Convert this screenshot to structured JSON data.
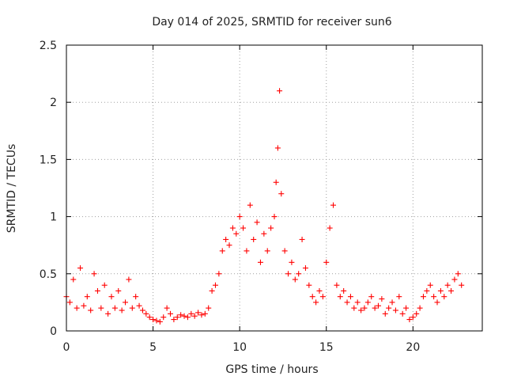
{
  "chart_data": {
    "type": "scatter",
    "title": "Day 014 of 2025, SRMTID for receiver sun6",
    "xlabel": "GPS time / hours",
    "ylabel": "SRMTID / TECUs",
    "xlim": [
      0,
      24
    ],
    "ylim": [
      0,
      2.5
    ],
    "xticks": [
      0,
      5,
      10,
      15,
      20
    ],
    "xtick_labels": [
      "0",
      "5",
      "10",
      "15",
      "20"
    ],
    "yticks": [
      0,
      0.5,
      1,
      1.5,
      2,
      2.5
    ],
    "ytick_labels": [
      "0",
      "0.5",
      "1",
      "1.5",
      "2",
      "2.5"
    ],
    "grid": true,
    "marker": "+",
    "color": "#ff0000",
    "series": [
      {
        "name": "SRMTID",
        "x": [
          0.0,
          0.2,
          0.4,
          0.6,
          0.8,
          1.0,
          1.2,
          1.4,
          1.6,
          1.8,
          2.0,
          2.2,
          2.4,
          2.6,
          2.8,
          3.0,
          3.2,
          3.4,
          3.6,
          3.8,
          4.0,
          4.2,
          4.4,
          4.6,
          4.8,
          5.0,
          5.2,
          5.4,
          5.6,
          5.8,
          6.0,
          6.2,
          6.4,
          6.6,
          6.8,
          7.0,
          7.2,
          7.4,
          7.6,
          7.8,
          8.0,
          8.2,
          8.4,
          8.6,
          8.8,
          9.0,
          9.2,
          9.4,
          9.6,
          9.8,
          10.0,
          10.2,
          10.4,
          10.6,
          10.8,
          11.0,
          11.2,
          11.4,
          11.6,
          11.8,
          12.0,
          12.1,
          12.2,
          12.3,
          12.4,
          12.6,
          12.8,
          13.0,
          13.2,
          13.4,
          13.6,
          13.8,
          14.0,
          14.2,
          14.4,
          14.6,
          14.8,
          15.0,
          15.2,
          15.4,
          15.6,
          15.8,
          16.0,
          16.2,
          16.4,
          16.6,
          16.8,
          17.0,
          17.2,
          17.4,
          17.6,
          17.8,
          18.0,
          18.2,
          18.4,
          18.6,
          18.8,
          19.0,
          19.2,
          19.4,
          19.6,
          19.8,
          20.0,
          20.2,
          20.4,
          20.6,
          20.8,
          21.0,
          21.2,
          21.4,
          21.6,
          21.8,
          22.0,
          22.2,
          22.4,
          22.6,
          22.8
        ],
        "y": [
          0.3,
          0.25,
          0.45,
          0.2,
          0.55,
          0.22,
          0.3,
          0.18,
          0.5,
          0.35,
          0.2,
          0.4,
          0.15,
          0.3,
          0.2,
          0.35,
          0.18,
          0.25,
          0.45,
          0.2,
          0.3,
          0.22,
          0.18,
          0.15,
          0.12,
          0.1,
          0.09,
          0.08,
          0.12,
          0.2,
          0.15,
          0.1,
          0.12,
          0.14,
          0.13,
          0.12,
          0.15,
          0.13,
          0.16,
          0.14,
          0.15,
          0.2,
          0.35,
          0.4,
          0.5,
          0.7,
          0.8,
          0.75,
          0.9,
          0.85,
          1.0,
          0.9,
          0.7,
          1.1,
          0.8,
          0.95,
          0.6,
          0.85,
          0.7,
          0.9,
          1.0,
          1.3,
          1.6,
          2.1,
          1.2,
          0.7,
          0.5,
          0.6,
          0.45,
          0.5,
          0.8,
          0.55,
          0.4,
          0.3,
          0.25,
          0.35,
          0.3,
          0.6,
          0.9,
          1.1,
          0.4,
          0.3,
          0.35,
          0.25,
          0.3,
          0.2,
          0.25,
          0.18,
          0.2,
          0.25,
          0.3,
          0.2,
          0.22,
          0.28,
          0.15,
          0.2,
          0.25,
          0.18,
          0.3,
          0.15,
          0.2,
          0.1,
          0.12,
          0.15,
          0.2,
          0.3,
          0.35,
          0.4,
          0.3,
          0.25,
          0.35,
          0.3,
          0.4,
          0.35,
          0.45,
          0.5,
          0.4
        ]
      }
    ]
  }
}
